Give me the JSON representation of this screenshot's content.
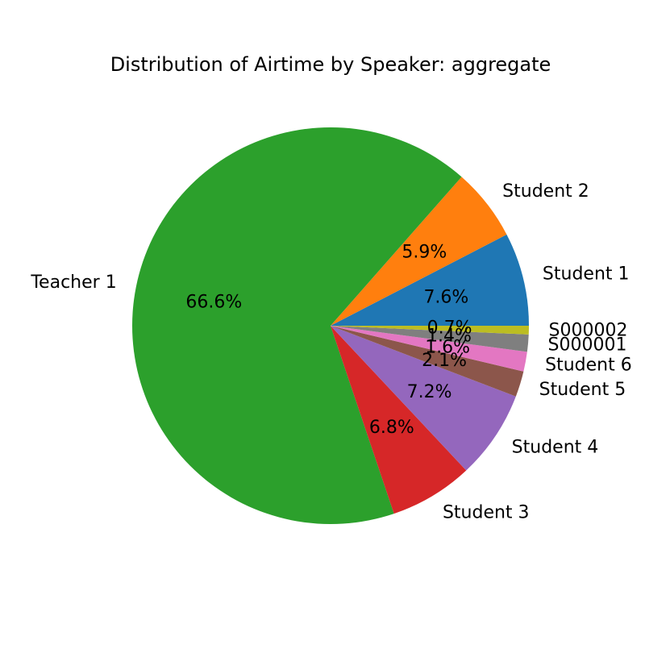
{
  "chart_data": {
    "type": "pie",
    "title": "Distribution of Airtime by Speaker: aggregate",
    "start_angle_deg": 0,
    "direction": "counterclockwise",
    "slices": [
      {
        "label": "Student 1",
        "value": 7.6,
        "pct_label": "7.6%",
        "color": "#1f77b4"
      },
      {
        "label": "Student 2",
        "value": 5.9,
        "pct_label": "5.9%",
        "color": "#ff7f0e"
      },
      {
        "label": "Teacher 1",
        "value": 66.6,
        "pct_label": "66.6%",
        "color": "#2ca02c"
      },
      {
        "label": "Student 3",
        "value": 6.8,
        "pct_label": "6.8%",
        "color": "#d62728"
      },
      {
        "label": "Student 4",
        "value": 7.2,
        "pct_label": "7.2%",
        "color": "#9467bd"
      },
      {
        "label": "Student 5",
        "value": 2.1,
        "pct_label": "2.1%",
        "color": "#8c564b"
      },
      {
        "label": "Student 6",
        "value": 1.6,
        "pct_label": "1.6%",
        "color": "#e377c2"
      },
      {
        "label": "S000001",
        "value": 1.4,
        "pct_label": "1.4%",
        "color": "#7f7f7f"
      },
      {
        "label": "S000002",
        "value": 0.7,
        "pct_label": "0.7%",
        "color": "#bcbd22"
      }
    ]
  }
}
